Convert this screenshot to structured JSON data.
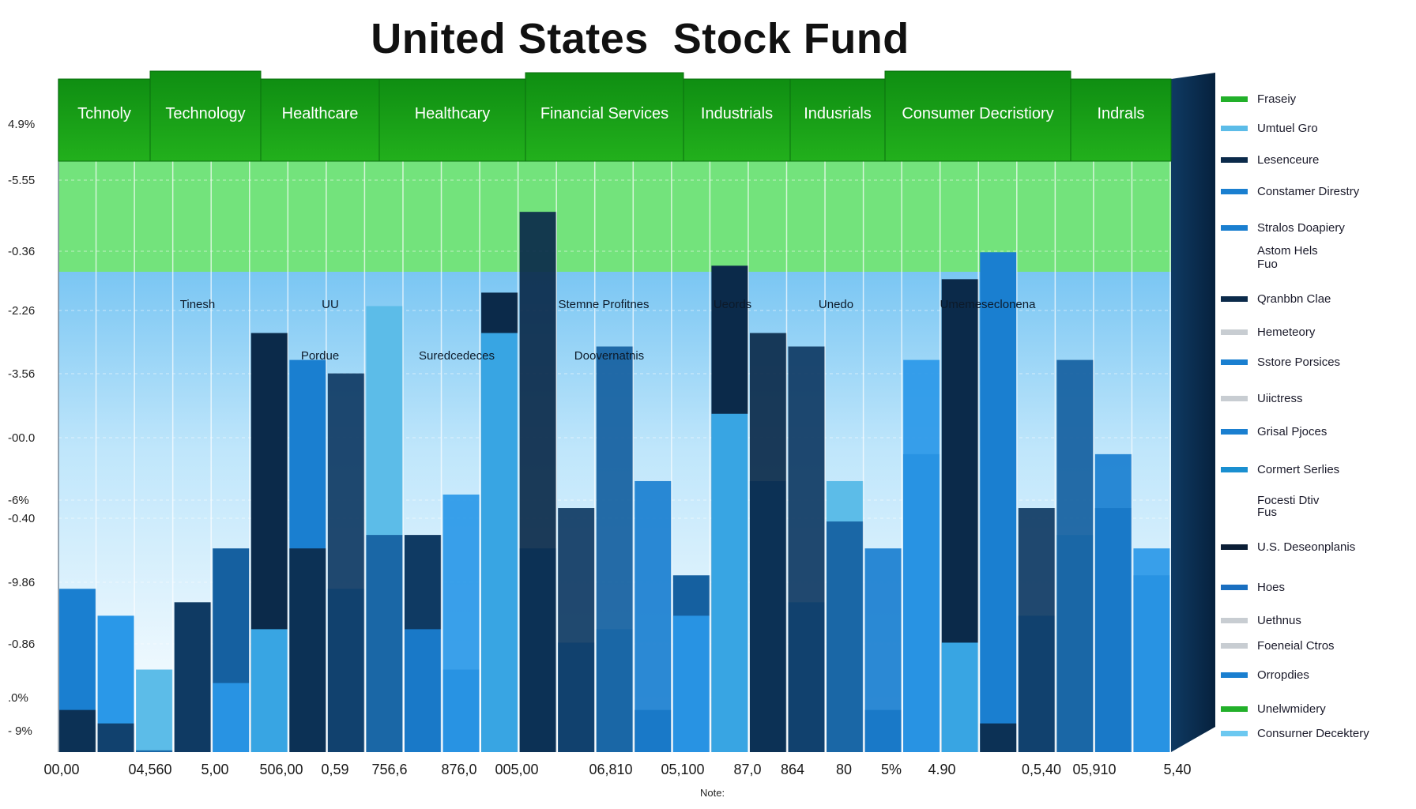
{
  "chart_data": {
    "type": "bar",
    "title": "United States  Stock Fund",
    "xlabel": "Note:",
    "ylabel": "",
    "y_tick_labels": [
      "4.9%",
      "-5.55",
      "-0.36",
      "-2.26",
      "-3.56",
      "-00.0",
      "-6%",
      "-0.40",
      "-9.86",
      "-0.86",
      ".0%",
      "- 9%"
    ],
    "x_tick_labels": [
      "00,00",
      "04,560",
      "5,00",
      "506,00",
      "0,59",
      "756,6",
      "876,0",
      "005,00",
      "06,810",
      "05,100",
      "87,0",
      "864",
      "80",
      "5%",
      "4.90",
      "0,5,40",
      "05,910",
      "5,40"
    ],
    "sector_labels": [
      "Tchnoly",
      "Technology",
      "Healthcare",
      "Healthcary",
      "Financial Services",
      "Industrials",
      "Indusrials",
      "Consumer Decristiory",
      "Indrals"
    ],
    "inner_labels": [
      "Tinesh",
      "UU",
      "Stemne Profitnes",
      "Ueords",
      "Unedo",
      "Umemeseclonena",
      "Pordue",
      "Suredcedeces",
      "Doovernatnis"
    ],
    "grid": true,
    "legend_position": "right",
    "legend": [
      {
        "name": "Fraseiy",
        "color": "#22b02a"
      },
      {
        "name": "Umtuel Gro",
        "color": "#5cbce8"
      },
      {
        "name": "Lesenceure",
        "color": "#0b2a4a"
      },
      {
        "name": "Constamer Direstry",
        "color": "#1a7fd0"
      },
      {
        "name": "Stralos Doapiery",
        "color": "#1a7fd0"
      },
      {
        "name": "Astom Hels",
        "color": ""
      },
      {
        "name": "Fuo",
        "color": ""
      },
      {
        "name": "Qranbbn Clae",
        "color": "#0b2a4a"
      },
      {
        "name": "Hemeteory",
        "color": "#c8cdd2"
      },
      {
        "name": "Sstore Porsices",
        "color": "#1a7fd0"
      },
      {
        "name": "Uiictress",
        "color": "#c8cdd2"
      },
      {
        "name": "Grisal Pjoces",
        "color": "#1a7fd0"
      },
      {
        "name": "Cormert Serlies",
        "color": "#1a8fd0"
      },
      {
        "name": "Focesti Dtiv",
        "color": ""
      },
      {
        "name": "Fus",
        "color": ""
      },
      {
        "name": "U.S. Deseonplanis",
        "color": "#0b1e36"
      },
      {
        "name": "Hoes",
        "color": "#1a6fc0"
      },
      {
        "name": "Uethnus",
        "color": "#c8cdd2"
      },
      {
        "name": "Foeneial Ctros",
        "color": "#c8cdd2"
      },
      {
        "name": "Orropdies",
        "color": "#1a7fd0"
      },
      {
        "name": "Unelwmidery",
        "color": "#22b02a"
      },
      {
        "name": "Consurner Decektery",
        "color": "#6cc8f0"
      }
    ],
    "series": [
      {
        "name": "",
        "values": [
          -4.1,
          -4.2,
          -4.4,
          -4.5,
          -3.9,
          -3.5,
          -2.9,
          -1.6,
          -2.8,
          -3.5,
          -2.5,
          -1.3,
          -0.4,
          -2.6,
          -1.4,
          -2.4,
          -3.4,
          -1.9,
          -1.3,
          -1.4,
          -2.7,
          -2.9,
          -1.5,
          -3.6,
          -4.2,
          -2.6,
          -1.5,
          -2.2,
          -2.9
        ]
      },
      {
        "name": "",
        "values": [
          -3.2,
          -3.4,
          -3.8,
          -3.3,
          -2.9,
          -1.3,
          -1.5,
          -3.2,
          -1.1,
          -2.8,
          -3.8,
          -1.0,
          -2.9,
          -3.6,
          -3.5,
          -4.1,
          -3.1,
          -0.8,
          -2.4,
          -3.3,
          -2.4,
          -4.1,
          -2.2,
          -0.9,
          -0.7,
          -3.4,
          -2.8,
          -2.6,
          -3.1
        ]
      }
    ]
  }
}
